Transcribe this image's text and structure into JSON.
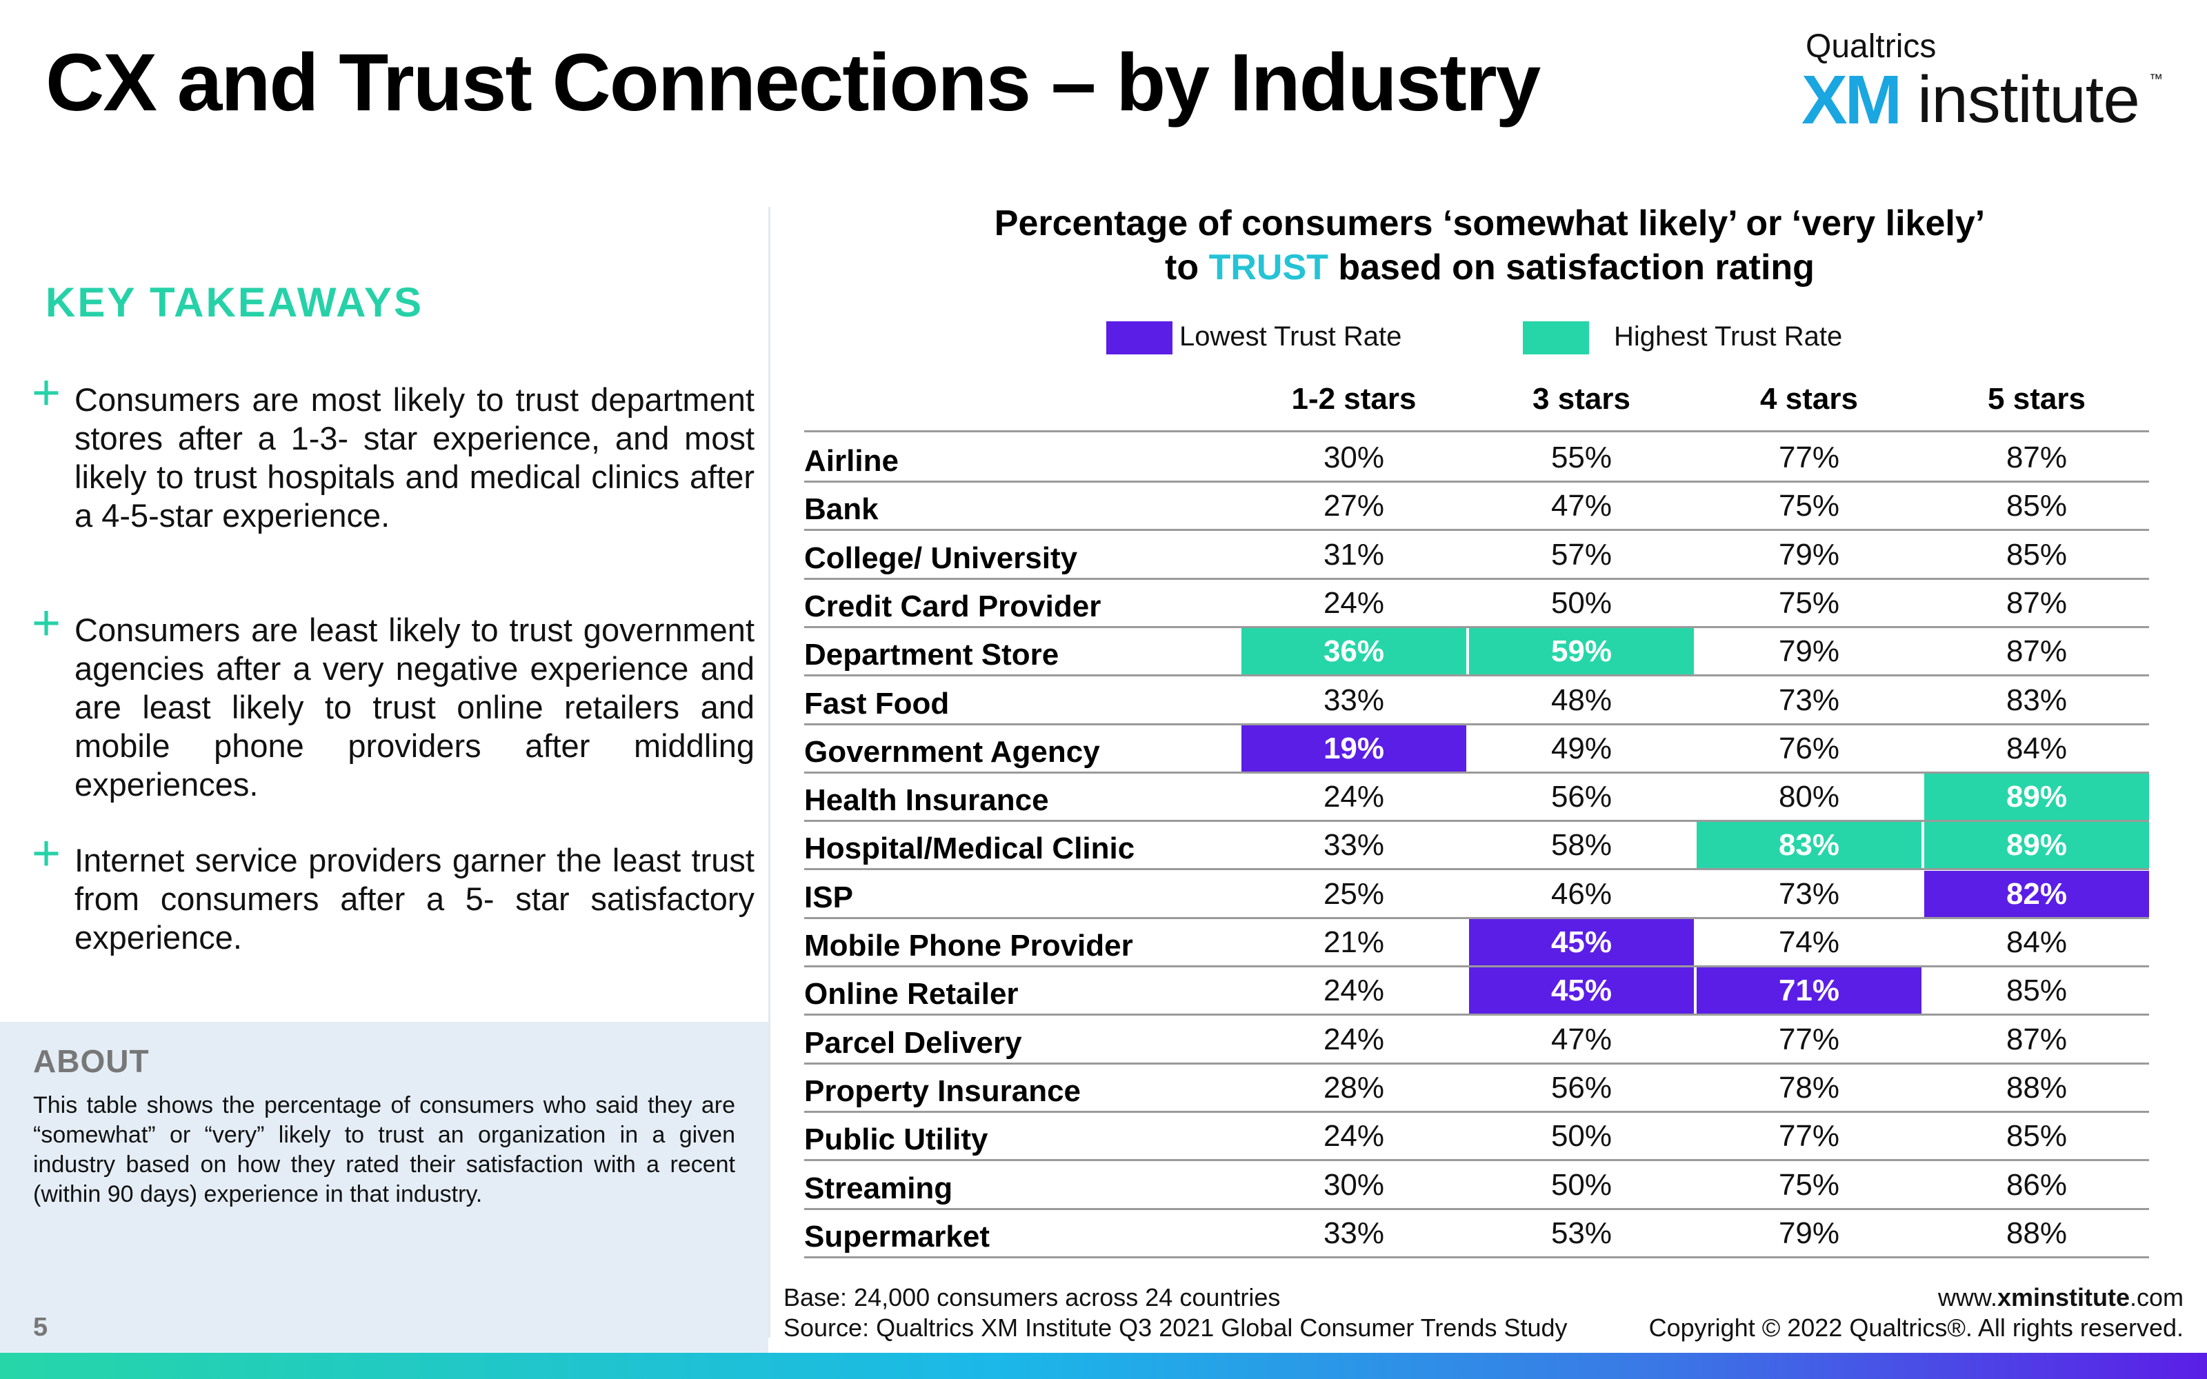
{
  "title": "CX and Trust Connections – by Industry",
  "logo": {
    "brand": "Qualtrics",
    "xm": "XM",
    "institute": "institute",
    "tm": "™"
  },
  "takeaways": {
    "heading": "KEY TAKEAWAYS",
    "items": [
      "Consumers are most likely to trust department stores after a 1-3- star experience, and most likely to trust hospitals and medical clinics after a 4-5-star experience.",
      "Consumers are least likely to trust government agencies after a very negative experience and are least likely to trust online retailers and mobile phone providers after middling experiences.",
      "Internet service providers garner the least trust from consumers after a 5- star satisfactory experience."
    ]
  },
  "about": {
    "heading": "ABOUT",
    "text": "This table shows the percentage of consumers who said they are “somewhat” or “very” likely to trust an organization in a given industry based on how they rated their satisfaction with a recent (within 90 days) experience in that industry."
  },
  "page_number": "5",
  "chart": {
    "title_line1": "Percentage of consumers ‘somewhat likely’ or ‘very likely’",
    "title_pre": "to ",
    "title_highlight": "TRUST",
    "title_post": " based on satisfaction rating",
    "legend": {
      "low_label": "Lowest Trust Rate",
      "high_label": "Highest Trust Rate",
      "low_color": "#5b1ee6",
      "high_color": "#26d6a8"
    }
  },
  "chart_data": {
    "type": "table",
    "columns": [
      "1-2 stars",
      "3 stars",
      "4 stars",
      "5 stars"
    ],
    "rows": [
      {
        "industry": "Airline",
        "values": [
          "30%",
          "55%",
          "77%",
          "87%"
        ],
        "marks": [
          "",
          "",
          "",
          ""
        ]
      },
      {
        "industry": "Bank",
        "values": [
          "27%",
          "47%",
          "75%",
          "85%"
        ],
        "marks": [
          "",
          "",
          "",
          ""
        ]
      },
      {
        "industry": "College/ University",
        "values": [
          "31%",
          "57%",
          "79%",
          "85%"
        ],
        "marks": [
          "",
          "",
          "",
          ""
        ]
      },
      {
        "industry": "Credit Card Provider",
        "values": [
          "24%",
          "50%",
          "75%",
          "87%"
        ],
        "marks": [
          "",
          "",
          "",
          ""
        ]
      },
      {
        "industry": "Department Store",
        "values": [
          "36%",
          "59%",
          "79%",
          "87%"
        ],
        "marks": [
          "high",
          "high",
          "",
          ""
        ]
      },
      {
        "industry": "Fast Food",
        "values": [
          "33%",
          "48%",
          "73%",
          "83%"
        ],
        "marks": [
          "",
          "",
          "",
          ""
        ]
      },
      {
        "industry": "Government Agency",
        "values": [
          "19%",
          "49%",
          "76%",
          "84%"
        ],
        "marks": [
          "low",
          "",
          "",
          ""
        ]
      },
      {
        "industry": "Health Insurance",
        "values": [
          "24%",
          "56%",
          "80%",
          "89%"
        ],
        "marks": [
          "",
          "",
          "",
          "high"
        ]
      },
      {
        "industry": "Hospital/Medical Clinic",
        "values": [
          "33%",
          "58%",
          "83%",
          "89%"
        ],
        "marks": [
          "",
          "",
          "high",
          "high"
        ]
      },
      {
        "industry": "ISP",
        "values": [
          "25%",
          "46%",
          "73%",
          "82%"
        ],
        "marks": [
          "",
          "",
          "",
          "low"
        ]
      },
      {
        "industry": "Mobile Phone Provider",
        "values": [
          "21%",
          "45%",
          "74%",
          "84%"
        ],
        "marks": [
          "",
          "low",
          "",
          ""
        ]
      },
      {
        "industry": "Online Retailer",
        "values": [
          "24%",
          "45%",
          "71%",
          "85%"
        ],
        "marks": [
          "",
          "low",
          "low",
          ""
        ]
      },
      {
        "industry": "Parcel Delivery",
        "values": [
          "24%",
          "47%",
          "77%",
          "87%"
        ],
        "marks": [
          "",
          "",
          "",
          ""
        ]
      },
      {
        "industry": "Property Insurance",
        "values": [
          "28%",
          "56%",
          "78%",
          "88%"
        ],
        "marks": [
          "",
          "",
          "",
          ""
        ]
      },
      {
        "industry": "Public Utility",
        "values": [
          "24%",
          "50%",
          "77%",
          "85%"
        ],
        "marks": [
          "",
          "",
          "",
          ""
        ]
      },
      {
        "industry": "Streaming",
        "values": [
          "30%",
          "50%",
          "75%",
          "86%"
        ],
        "marks": [
          "",
          "",
          "",
          ""
        ]
      },
      {
        "industry": "Supermarket",
        "values": [
          "33%",
          "53%",
          "79%",
          "88%"
        ],
        "marks": [
          "",
          "",
          "",
          ""
        ]
      }
    ]
  },
  "footer": {
    "base": "Base: 24,000 consumers across 24 countries",
    "source": "Source: Qualtrics XM Institute Q3 2021 Global Consumer Trends Study",
    "url_pre": "www.",
    "url_bold": "xminstitute",
    "url_post": ".com",
    "copyright": "Copyright © 2022 Qualtrics®. All rights reserved."
  }
}
